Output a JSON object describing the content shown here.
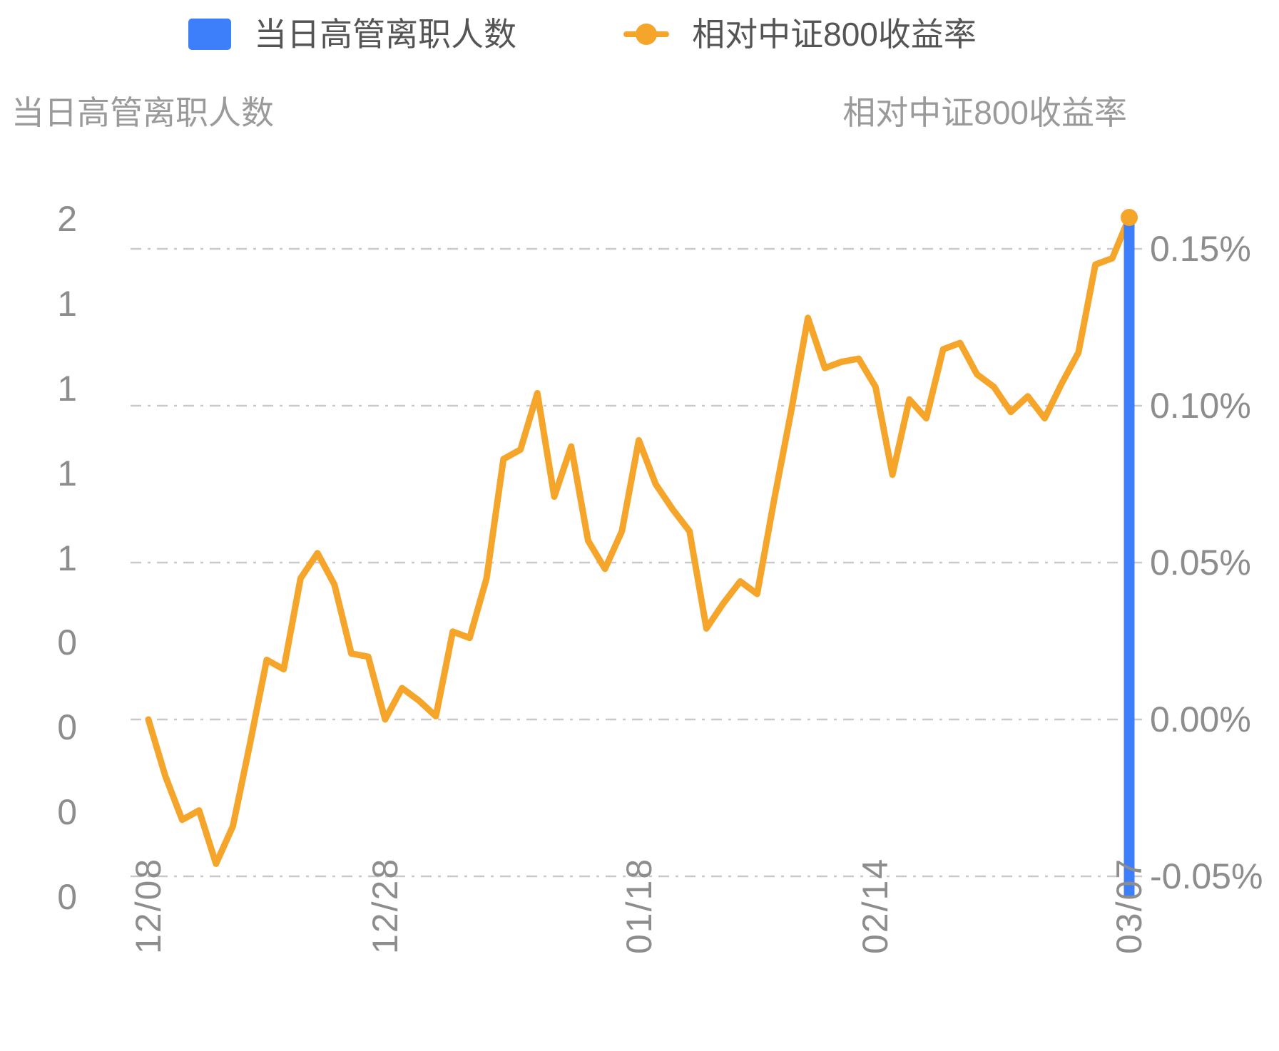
{
  "legend": {
    "items": [
      {
        "label": "当日高管离职人数",
        "series_type": "bar",
        "color": "#3D7EFA"
      },
      {
        "label": "相对中证800收益率",
        "series_type": "line",
        "color": "#F6A52B"
      }
    ]
  },
  "left_axis": {
    "title": "当日高管离职人数",
    "tick_labels": [
      "2",
      "1",
      "1",
      "1",
      "1",
      "0",
      "0",
      "0",
      "0"
    ],
    "min": 0,
    "max": 2
  },
  "right_axis": {
    "title": "相对中证800收益率",
    "tick_labels": [
      "0.15%",
      "0.10%",
      "0.05%",
      "0.00%",
      "-0.05%"
    ],
    "min_pct": -0.05,
    "max_pct": 0.15
  },
  "x_axis": {
    "tick_labels": [
      "12/08",
      "12/28",
      "01/18",
      "02/14",
      "03/07"
    ]
  },
  "chart_data": {
    "type": "bar+line combo",
    "title": "",
    "num_points": 59,
    "x_tick_labels": [
      "12/08",
      "12/28",
      "01/18",
      "02/14",
      "03/07"
    ],
    "x_tick_indices": [
      0,
      14,
      29,
      43,
      58
    ],
    "left_ylim": [
      0,
      2
    ],
    "right_ylim_pct": [
      -0.05,
      0.15
    ],
    "grid": "horizontal dash-dot lines at right-axis ticks",
    "legend_position": "top-center",
    "series": [
      {
        "name": "当日高管离职人数",
        "type": "bar",
        "y_axis": "left",
        "color": "#3D7EFA",
        "points": [
          {
            "x_index": 58,
            "x_label": "03/07",
            "value": 2
          }
        ]
      },
      {
        "name": "相对中证800收益率",
        "type": "line",
        "y_axis": "right",
        "unit": "percent",
        "color": "#F6A52B",
        "last_point_marker": true,
        "values": [
          0.0,
          -0.018,
          -0.032,
          -0.029,
          -0.046,
          -0.034,
          -0.008,
          0.019,
          0.016,
          0.045,
          0.053,
          0.043,
          0.021,
          0.02,
          0.0,
          0.01,
          0.006,
          0.001,
          0.028,
          0.026,
          0.045,
          0.083,
          0.086,
          0.104,
          0.071,
          0.087,
          0.057,
          0.048,
          0.06,
          0.089,
          0.075,
          0.067,
          0.06,
          0.029,
          0.037,
          0.044,
          0.04,
          0.07,
          0.098,
          0.128,
          0.112,
          0.114,
          0.115,
          0.106,
          0.078,
          0.102,
          0.096,
          0.118,
          0.12,
          0.11,
          0.106,
          0.098,
          0.103,
          0.096,
          0.107,
          0.117,
          0.145,
          0.147,
          0.16
        ]
      }
    ]
  },
  "colors": {
    "bar_blue": "#3D7EFA",
    "line_orange": "#F6A52B",
    "tick_text": "#8D8D8D",
    "title_text": "#9A9A9A",
    "legend_text": "#555555",
    "gridline": "#C9C9C9",
    "background": "#FFFFFF"
  }
}
